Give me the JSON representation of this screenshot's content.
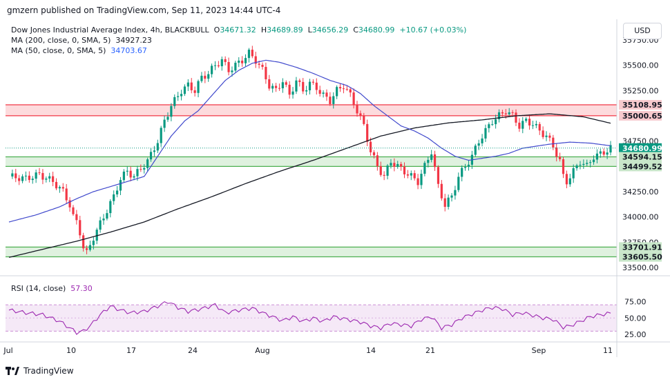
{
  "header": {
    "publisher": "gmzern published on TradingView.com, Sep 11, 2023 14:44 UTC-4"
  },
  "legend": {
    "symbol": "Dow Jones Industrial Average Index, 4h, BLACKBULL",
    "o_label": "O",
    "o_value": "34671.32",
    "h_label": "H",
    "h_value": "34689.89",
    "l_label": "L",
    "l_value": "34656.29",
    "c_label": "C",
    "c_value": "34680.99",
    "change": "+10.67 (+0.03%)",
    "ma200_label": "MA (200, close, 0, SMA, 5)",
    "ma200_value": "34927.23",
    "ma50_label": "MA (50, close, 0, SMA, 5)",
    "ma50_value": "34703.67",
    "rsi_label": "RSI (14, close)",
    "rsi_value": "57.30"
  },
  "currency_button": "USD",
  "footer": {
    "brand": "TradingView"
  },
  "colors": {
    "up": "#089981",
    "down": "#f23645",
    "ma50": "#3f48cc",
    "ma200": "#131722",
    "rsi": "#9c27b0",
    "resistance_zone": "#f23645",
    "support_zone": "#4caf50"
  },
  "chart_data": {
    "type": "candlestick",
    "y_ticks": [
      "35750.00",
      "35500.00",
      "35250.00",
      "35000.00",
      "34750.00",
      "34250.00",
      "34000.00",
      "33750.00",
      "33500.00"
    ],
    "ylim": [
      33500,
      35750
    ],
    "x_ticks": [
      "Jul",
      "10",
      "17",
      "24",
      "Aug",
      "14",
      "21",
      "Sep",
      "11"
    ],
    "zones": [
      {
        "name": "resistance",
        "from": 35000.65,
        "to": 35108.95
      },
      {
        "name": "support",
        "from": 34499.52,
        "to": 34594.15
      },
      {
        "name": "support",
        "from": 33605.5,
        "to": 33701.91
      }
    ],
    "price_labels": [
      {
        "value": 35108.95,
        "text": "35108.95",
        "kind": "red"
      },
      {
        "value": 35000.65,
        "text": "35000.65",
        "kind": "red"
      },
      {
        "value": 34680.99,
        "text": "34680.99",
        "kind": "last"
      },
      {
        "value": 34620,
        "text": "02:15:01",
        "kind": "timer"
      },
      {
        "value": 34594.15,
        "text": "34594.15",
        "kind": "green"
      },
      {
        "value": 34499.52,
        "text": "34499.52",
        "kind": "green"
      },
      {
        "value": 33701.91,
        "text": "33701.91",
        "kind": "green"
      },
      {
        "value": 33605.5,
        "text": "33605.50",
        "kind": "green"
      }
    ],
    "close_path": [
      [
        0,
        34400
      ],
      [
        5,
        34380
      ],
      [
        9,
        34420
      ],
      [
        13,
        34350
      ],
      [
        16,
        34250
      ],
      [
        18,
        34120
      ],
      [
        19,
        34000
      ],
      [
        20,
        33950
      ],
      [
        21,
        33850
      ],
      [
        22,
        33700
      ],
      [
        23,
        33640
      ],
      [
        25,
        33800
      ],
      [
        28,
        34000
      ],
      [
        31,
        34200
      ],
      [
        33,
        34380
      ],
      [
        35,
        34450
      ],
      [
        37,
        34400
      ],
      [
        39,
        34480
      ],
      [
        41,
        34550
      ],
      [
        44,
        34750
      ],
      [
        46,
        34950
      ],
      [
        48,
        35100
      ],
      [
        51,
        35250
      ],
      [
        53,
        35300
      ],
      [
        55,
        35250
      ],
      [
        57,
        35380
      ],
      [
        59,
        35420
      ],
      [
        61,
        35500
      ],
      [
        63,
        35550
      ],
      [
        65,
        35450
      ],
      [
        67,
        35500
      ],
      [
        69,
        35550
      ],
      [
        71,
        35620
      ],
      [
        73,
        35550
      ],
      [
        75,
        35450
      ],
      [
        77,
        35300
      ],
      [
        79,
        35250
      ],
      [
        81,
        35350
      ],
      [
        83,
        35200
      ],
      [
        85,
        35350
      ],
      [
        87,
        35250
      ],
      [
        89,
        35320
      ],
      [
        91,
        35280
      ],
      [
        93,
        35200
      ],
      [
        95,
        35150
      ],
      [
        97,
        35250
      ],
      [
        99,
        35300
      ],
      [
        101,
        35200
      ],
      [
        103,
        35050
      ],
      [
        105,
        34900
      ],
      [
        107,
        34650
      ],
      [
        109,
        34500
      ],
      [
        111,
        34400
      ],
      [
        113,
        34550
      ],
      [
        115,
        34500
      ],
      [
        117,
        34450
      ],
      [
        119,
        34400
      ],
      [
        121,
        34350
      ],
      [
        123,
        34500
      ],
      [
        125,
        34650
      ],
      [
        127,
        34300
      ],
      [
        129,
        34120
      ],
      [
        131,
        34200
      ],
      [
        133,
        34400
      ],
      [
        135,
        34500
      ],
      [
        137,
        34600
      ],
      [
        139,
        34750
      ],
      [
        141,
        34850
      ],
      [
        143,
        34950
      ],
      [
        145,
        35000
      ],
      [
        147,
        35050
      ],
      [
        149,
        35000
      ],
      [
        151,
        34900
      ],
      [
        153,
        34950
      ],
      [
        155,
        34920
      ],
      [
        157,
        34850
      ],
      [
        159,
        34800
      ],
      [
        161,
        34700
      ],
      [
        163,
        34550
      ],
      [
        164,
        34400
      ],
      [
        165,
        34350
      ],
      [
        167,
        34450
      ],
      [
        169,
        34550
      ],
      [
        171,
        34500
      ],
      [
        173,
        34600
      ],
      [
        175,
        34620
      ],
      [
        177,
        34660
      ],
      [
        178,
        34681
      ]
    ],
    "ma50_path": [
      [
        0,
        33950
      ],
      [
        8,
        34020
      ],
      [
        15,
        34100
      ],
      [
        20,
        34180
      ],
      [
        25,
        34250
      ],
      [
        30,
        34300
      ],
      [
        35,
        34350
      ],
      [
        40,
        34400
      ],
      [
        44,
        34600
      ],
      [
        48,
        34800
      ],
      [
        52,
        34950
      ],
      [
        56,
        35050
      ],
      [
        60,
        35200
      ],
      [
        64,
        35350
      ],
      [
        68,
        35450
      ],
      [
        72,
        35520
      ],
      [
        76,
        35550
      ],
      [
        80,
        35530
      ],
      [
        85,
        35480
      ],
      [
        90,
        35420
      ],
      [
        95,
        35350
      ],
      [
        100,
        35300
      ],
      [
        104,
        35220
      ],
      [
        108,
        35100
      ],
      [
        112,
        35000
      ],
      [
        116,
        34900
      ],
      [
        120,
        34850
      ],
      [
        124,
        34780
      ],
      [
        128,
        34680
      ],
      [
        132,
        34600
      ],
      [
        136,
        34560
      ],
      [
        140,
        34580
      ],
      [
        144,
        34600
      ],
      [
        148,
        34630
      ],
      [
        152,
        34680
      ],
      [
        156,
        34700
      ],
      [
        160,
        34720
      ],
      [
        166,
        34740
      ],
      [
        172,
        34730
      ],
      [
        178,
        34704
      ]
    ],
    "ma200_path": [
      [
        0,
        33600
      ],
      [
        10,
        33680
      ],
      [
        20,
        33760
      ],
      [
        30,
        33850
      ],
      [
        40,
        33950
      ],
      [
        50,
        34080
      ],
      [
        60,
        34200
      ],
      [
        70,
        34330
      ],
      [
        80,
        34450
      ],
      [
        90,
        34560
      ],
      [
        100,
        34680
      ],
      [
        110,
        34800
      ],
      [
        120,
        34880
      ],
      [
        130,
        34930
      ],
      [
        140,
        34960
      ],
      [
        150,
        35000
      ],
      [
        160,
        35020
      ],
      [
        170,
        34990
      ],
      [
        178,
        34927
      ]
    ],
    "rsi": {
      "ticks": [
        "75.00",
        "50.00",
        "25.00"
      ],
      "ylim": [
        20,
        90
      ],
      "band": [
        30,
        70
      ],
      "path": [
        [
          0,
          62
        ],
        [
          5,
          58
        ],
        [
          10,
          55
        ],
        [
          15,
          45
        ],
        [
          18,
          35
        ],
        [
          20,
          28
        ],
        [
          22,
          30
        ],
        [
          24,
          38
        ],
        [
          27,
          55
        ],
        [
          30,
          68
        ],
        [
          33,
          62
        ],
        [
          36,
          58
        ],
        [
          40,
          60
        ],
        [
          44,
          68
        ],
        [
          47,
          75
        ],
        [
          50,
          66
        ],
        [
          53,
          60
        ],
        [
          57,
          64
        ],
        [
          61,
          70
        ],
        [
          64,
          58
        ],
        [
          68,
          62
        ],
        [
          72,
          65
        ],
        [
          75,
          58
        ],
        [
          78,
          52
        ],
        [
          81,
          46
        ],
        [
          84,
          52
        ],
        [
          87,
          45
        ],
        [
          90,
          50
        ],
        [
          93,
          45
        ],
        [
          96,
          52
        ],
        [
          100,
          48
        ],
        [
          104,
          44
        ],
        [
          107,
          38
        ],
        [
          110,
          35
        ],
        [
          113,
          42
        ],
        [
          116,
          40
        ],
        [
          119,
          38
        ],
        [
          122,
          48
        ],
        [
          125,
          52
        ],
        [
          128,
          35
        ],
        [
          131,
          40
        ],
        [
          134,
          50
        ],
        [
          137,
          56
        ],
        [
          140,
          62
        ],
        [
          143,
          66
        ],
        [
          146,
          64
        ],
        [
          149,
          55
        ],
        [
          152,
          58
        ],
        [
          155,
          54
        ],
        [
          158,
          50
        ],
        [
          161,
          48
        ],
        [
          164,
          36
        ],
        [
          166,
          38
        ],
        [
          169,
          45
        ],
        [
          172,
          52
        ],
        [
          175,
          55
        ],
        [
          178,
          57.3
        ]
      ]
    }
  }
}
